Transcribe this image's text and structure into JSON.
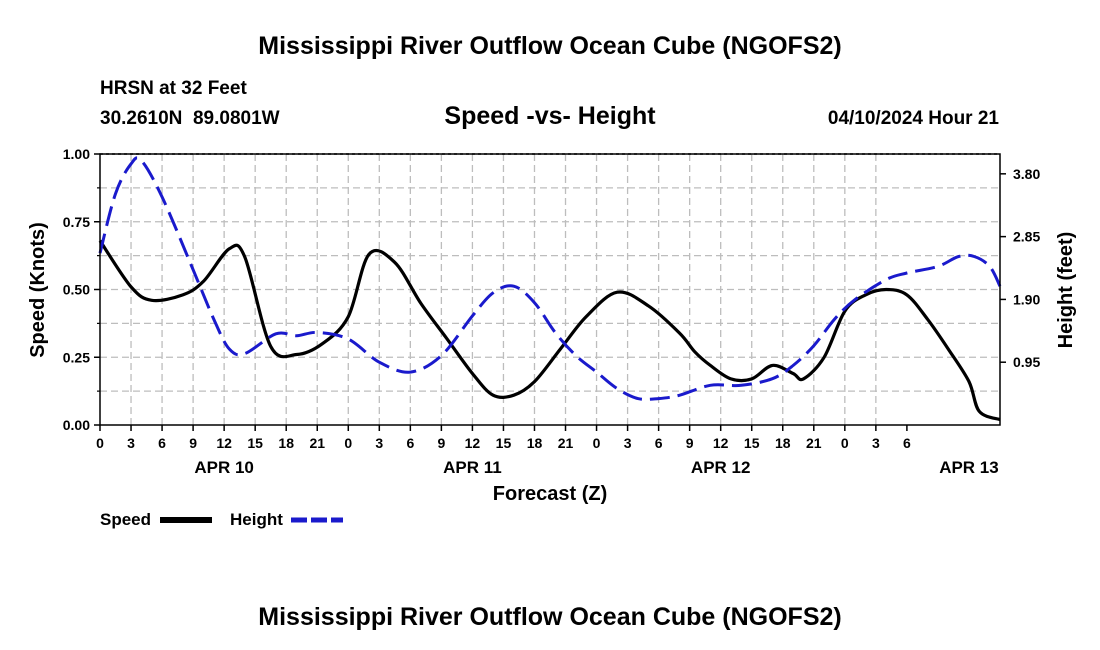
{
  "page": {
    "title": "Mississippi River Outflow Ocean Cube (NGOFS2)",
    "station_line1": "HRSN at 32 Feet",
    "station_line2": "30.2610N  89.0801W",
    "date_label": "04/10/2024 Hour 21",
    "bottom_title": "Mississippi River Outflow Ocean Cube (NGOFS2)"
  },
  "colors": {
    "speed": "#000000",
    "height": "#1a1acc",
    "grid": "#bdbdbd"
  },
  "chart_data": {
    "type": "line",
    "title": "Speed -vs- Height",
    "xlabel": "Forecast (Z)",
    "ylabel": "Speed (Knots)",
    "ylabel_right": "Height (feet)",
    "x_hours_range": [
      0,
      87
    ],
    "ylim": [
      0,
      1
    ],
    "ylim_right": [
      0.0,
      4.1
    ],
    "yticks": [
      "0.00",
      "0.25",
      "0.50",
      "0.75",
      "1.00"
    ],
    "yticks_right": [
      "0.95",
      "1.90",
      "2.85",
      "3.80"
    ],
    "xtick_labels": [
      "0",
      "3",
      "6",
      "9",
      "12",
      "15",
      "18",
      "21",
      "0",
      "3",
      "6",
      "9",
      "12",
      "15",
      "18",
      "21",
      "0",
      "3",
      "6",
      "9",
      "12",
      "15",
      "18",
      "21",
      "0",
      "3",
      "6"
    ],
    "day_labels": [
      {
        "label": "APR 10",
        "hour": 12
      },
      {
        "label": "APR 11",
        "hour": 36
      },
      {
        "label": "APR 12",
        "hour": 60
      },
      {
        "label": "APR 13",
        "hour": 84
      }
    ],
    "series": [
      {
        "name": "Speed",
        "axis": "left",
        "style": "solid",
        "x": [
          0,
          3,
          5,
          8,
          10,
          12.5,
          14,
          16.5,
          19,
          21.5,
          24,
          26,
          28.5,
          31,
          33.5,
          36,
          38,
          40,
          42,
          44.5,
          47,
          50,
          53,
          56,
          57.5,
          59,
          61,
          63,
          65,
          67,
          68,
          70,
          72,
          74,
          76,
          78,
          80,
          82,
          84,
          85,
          87
        ],
        "values": [
          0.68,
          0.51,
          0.46,
          0.48,
          0.53,
          0.65,
          0.62,
          0.29,
          0.26,
          0.3,
          0.4,
          0.63,
          0.6,
          0.45,
          0.32,
          0.19,
          0.11,
          0.11,
          0.16,
          0.28,
          0.4,
          0.49,
          0.44,
          0.34,
          0.27,
          0.22,
          0.17,
          0.17,
          0.22,
          0.19,
          0.17,
          0.25,
          0.42,
          0.48,
          0.5,
          0.48,
          0.39,
          0.28,
          0.16,
          0.05,
          0.02
        ]
      },
      {
        "name": "Height",
        "axis": "right",
        "style": "dashed",
        "x": [
          0,
          1.5,
          3,
          4,
          6,
          9,
          11,
          12.5,
          14,
          17,
          19,
          21,
          24,
          27,
          30,
          33,
          36,
          38,
          40,
          42,
          44,
          46,
          48,
          50,
          52,
          54,
          56,
          59,
          62,
          65,
          67,
          69,
          71,
          73,
          76,
          78,
          81,
          83,
          84.5,
          86,
          87
        ],
        "values": [
          2.6,
          3.5,
          3.95,
          4.0,
          3.45,
          2.35,
          1.6,
          1.15,
          1.08,
          1.38,
          1.35,
          1.4,
          1.3,
          0.95,
          0.8,
          1.05,
          1.65,
          2.0,
          2.1,
          1.85,
          1.4,
          1.05,
          0.8,
          0.55,
          0.4,
          0.4,
          0.45,
          0.6,
          0.6,
          0.7,
          0.9,
          1.2,
          1.6,
          1.9,
          2.2,
          2.3,
          2.4,
          2.55,
          2.55,
          2.4,
          2.1
        ]
      }
    ],
    "legend": [
      {
        "label": "Speed",
        "style": "solid"
      },
      {
        "label": "Height",
        "style": "dashed"
      }
    ]
  }
}
